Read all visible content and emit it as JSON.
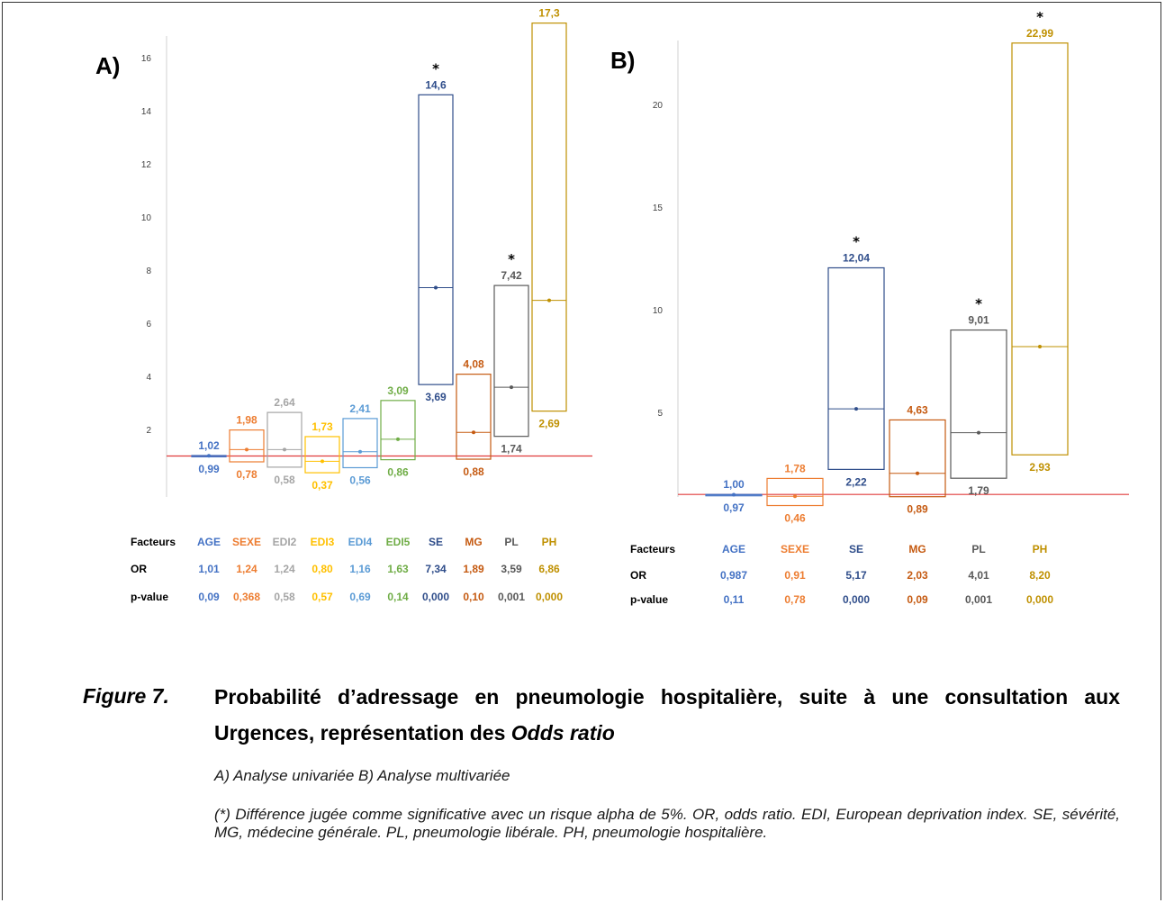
{
  "colors": {
    "AGE": "#4472c4",
    "SEXE": "#ed7d31",
    "EDI2": "#a5a5a5",
    "EDI3": "#ffc000",
    "EDI4": "#5b9bd5",
    "EDI5": "#70ad47",
    "SE": "#2f4d8a",
    "MG": "#c55a11",
    "PL": "#595959",
    "PH": "#bf9000",
    "reference_line": "#e03c3c",
    "axis": "#d0d0d0"
  },
  "chart_data": [
    {
      "type": "box",
      "panel_label": "A)",
      "ylim": [
        0,
        17.3
      ],
      "yticks": [
        2,
        4,
        6,
        8,
        10,
        12,
        14,
        16
      ],
      "reference_line": 1,
      "factors": [
        "AGE",
        "SEXE",
        "EDI2",
        "EDI3",
        "EDI4",
        "EDI5",
        "SE",
        "MG",
        "PL",
        "PH"
      ],
      "upper": [
        1.02,
        1.98,
        2.64,
        1.73,
        2.41,
        3.09,
        14.6,
        4.08,
        7.42,
        17.3
      ],
      "lower": [
        0.99,
        0.78,
        0.58,
        0.37,
        0.56,
        0.86,
        3.69,
        0.88,
        1.74,
        2.69
      ],
      "upper_labels": [
        "1,02",
        "1,98",
        "2,64",
        "1,73",
        "2,41",
        "3,09",
        "14,6",
        "4,08",
        "7,42",
        "17,3"
      ],
      "lower_labels": [
        "0,99",
        "0,78",
        "0,58",
        "0,37",
        "0,56",
        "0,86",
        "3,69",
        "0,88",
        "1,74",
        "2,69"
      ],
      "or": [
        1.01,
        1.24,
        1.24,
        0.8,
        1.16,
        1.63,
        7.34,
        1.89,
        3.59,
        6.86
      ],
      "significant": [
        false,
        false,
        false,
        false,
        false,
        false,
        true,
        false,
        true,
        true
      ],
      "table": {
        "header_label": "Facteurs",
        "or_label": "OR",
        "p_label": "p-value",
        "or_values": [
          "1,01",
          "1,24",
          "1,24",
          "0,80",
          "1,16",
          "1,63",
          "7,34",
          "1,89",
          "3,59",
          "6,86"
        ],
        "p_values": [
          "0,09",
          "0,368",
          "0,58",
          "0,57",
          "0,69",
          "0,14",
          "0,000",
          "0,10",
          "0,001",
          "0,000"
        ]
      }
    },
    {
      "type": "box",
      "panel_label": "B)",
      "ylim": [
        0,
        23
      ],
      "yticks": [
        5,
        10,
        15,
        20
      ],
      "reference_line": 1,
      "factors": [
        "AGE",
        "SEXE",
        "SE",
        "MG",
        "PL",
        "PH"
      ],
      "upper": [
        1.0,
        1.78,
        12.04,
        4.63,
        9.01,
        22.99
      ],
      "lower": [
        0.97,
        0.46,
        2.22,
        0.89,
        1.79,
        2.93
      ],
      "upper_labels": [
        "1,00",
        "1,78",
        "12,04",
        "4,63",
        "9,01",
        "22,99"
      ],
      "lower_labels": [
        "0,97",
        "0,46",
        "2,22",
        "0,89",
        "1,79",
        "2,93"
      ],
      "or": [
        0.987,
        0.91,
        5.17,
        2.03,
        4.01,
        8.2
      ],
      "significant": [
        false,
        false,
        true,
        false,
        true,
        true
      ],
      "table": {
        "header_label": "Facteurs",
        "or_label": "OR",
        "p_label": "p-value",
        "or_values": [
          "0,987",
          "0,91",
          "5,17",
          "2,03",
          "4,01",
          "8,20"
        ],
        "p_values": [
          "0,11",
          "0,78",
          "0,000",
          "0,09",
          "0,001",
          "0,000"
        ]
      }
    }
  ],
  "caption": {
    "figure_label": "Figure 7.",
    "title_main": "Probabilité d’adressage en pneumologie hospitalière, suite à une consultation aux Urgences, représentation des ",
    "title_italic": "Odds ratio",
    "subtitle": "A) Analyse univariée B) Analyse multivariée",
    "note": "(*) Différence jugée comme significative avec un risque alpha de 5%. OR, odds ratio. EDI, European deprivation index. SE, sévérité, MG, médecine générale. PL, pneumologie libérale. PH, pneumologie hospitalière."
  }
}
